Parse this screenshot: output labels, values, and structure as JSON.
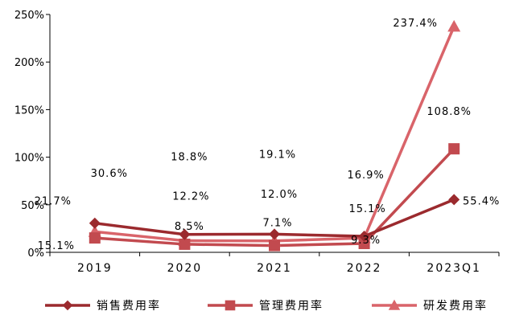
{
  "chart_data": {
    "type": "line",
    "categories": [
      "2019",
      "2020",
      "2021",
      "2022",
      "2023Q1"
    ],
    "ylim": [
      0,
      250
    ],
    "yticks": [
      0,
      50,
      100,
      150,
      200,
      250
    ],
    "ytick_labels": [
      "0%",
      "50%",
      "100%",
      "150%",
      "200%",
      "250%"
    ],
    "grid": false,
    "legend_position": "bottom",
    "series": [
      {
        "name": "销售费用率",
        "marker": "diamond",
        "color": "#9b2a2e",
        "values": [
          30.6,
          18.8,
          19.1,
          16.9,
          55.4
        ],
        "labels": [
          "30.6%",
          "18.8%",
          "19.1%",
          "16.9%",
          "55.4%"
        ]
      },
      {
        "name": "管理费用率",
        "marker": "square",
        "color": "#c24a4f",
        "values": [
          15.1,
          8.5,
          7.1,
          9.3,
          108.8
        ],
        "labels": [
          "15.1%",
          "8.5%",
          "7.1%",
          "9.3%",
          "108.8%"
        ]
      },
      {
        "name": "研发费用率",
        "marker": "triangle",
        "color": "#d9646a",
        "values": [
          21.7,
          12.2,
          12.0,
          15.1,
          237.4
        ],
        "labels": [
          "21.7%",
          "12.2%",
          "12.0%",
          "15.1%",
          "237.4%"
        ]
      }
    ]
  }
}
